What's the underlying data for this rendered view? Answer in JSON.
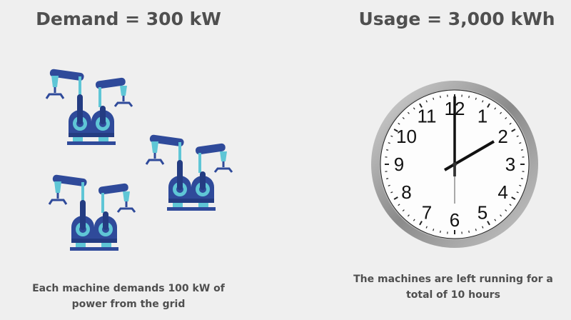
{
  "left": {
    "title": "Demand = 300 kW",
    "caption_line1": "Each machine demands 100 kW of",
    "caption_line2": "power from the grid",
    "icon": "robotic-arm-machine-icon",
    "machine_count": 3
  },
  "right": {
    "title": "Usage = 3,000 kWh",
    "caption_line1": "The machines are left running for a",
    "caption_line2": "total of 10 hours",
    "icon": "wall-clock-icon",
    "clock_time": "2:00",
    "numerals": [
      "12",
      "1",
      "2",
      "3",
      "4",
      "5",
      "6",
      "7",
      "8",
      "9",
      "10",
      "11"
    ]
  },
  "colors": {
    "machine_dark": "#2f4a9a",
    "machine_light": "#5fc6d6",
    "background": "#efefef"
  }
}
